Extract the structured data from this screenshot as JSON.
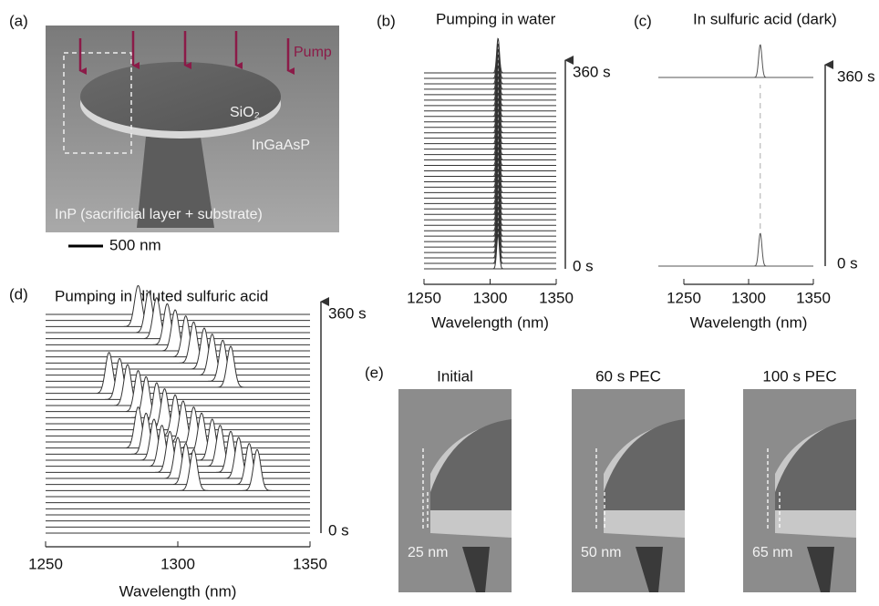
{
  "panels": {
    "a": {
      "label": "(a)",
      "pump": "Pump",
      "sio2": "SiO₂",
      "ingaasp": "InGaAsP",
      "inp": "InP (sacrificial layer + substrate)",
      "scale_bar": "500 nm"
    },
    "e": {
      "label": "(e)",
      "images": [
        {
          "title": "Initial",
          "thickness": "25 nm"
        },
        {
          "title": "60 s PEC",
          "thickness": "50 nm"
        },
        {
          "title": "100 s PEC",
          "thickness": "65 nm"
        }
      ]
    }
  },
  "chart_data": [
    {
      "type": "waterfall",
      "label": "(b)",
      "title": "Pumping in water",
      "x_label": "Wavelength (nm)",
      "xlim": [
        1250,
        1350
      ],
      "xticks": [
        1250,
        1300,
        1350
      ],
      "ylim": [
        0,
        360
      ],
      "yticks": [
        {
          "value": 0,
          "label": "0 s"
        },
        {
          "value": 360,
          "label": "360 s"
        }
      ],
      "x": [
        0,
        10,
        20,
        30,
        40,
        50,
        60,
        70,
        80,
        90,
        100,
        110,
        120,
        130,
        140,
        150,
        160,
        170,
        180,
        190,
        200,
        210,
        220,
        230,
        240,
        250,
        260,
        270,
        280,
        290,
        300,
        310,
        320,
        330,
        340,
        350,
        360
      ],
      "series": [
        {
          "color": "#333333",
          "values": [
            1306,
            1306,
            1306,
            1306,
            1306,
            1306,
            1306,
            1306,
            1306,
            1306,
            1306,
            1306,
            1306,
            1306,
            1306,
            1306,
            1306,
            1306,
            1306,
            1306,
            1306,
            1306,
            1306,
            1306,
            1306,
            1306,
            1306,
            1306,
            1306,
            1306,
            1306,
            1306,
            1306,
            1306,
            1306,
            1306,
            1306
          ]
        }
      ]
    },
    {
      "type": "waterfall",
      "label": "(c)",
      "title": "In sulfuric acid (dark)",
      "x_label": "Wavelength (nm)",
      "xlim": [
        1250,
        1350
      ],
      "xticks": [
        1250,
        1300,
        1350
      ],
      "ylim": [
        0,
        360
      ],
      "yticks": [
        {
          "value": 0,
          "label": "0 s"
        },
        {
          "value": 360,
          "label": "360 s"
        }
      ],
      "x": [
        0,
        360
      ],
      "series": [
        {
          "color": "#555555",
          "values": [
            1309,
            1309
          ]
        }
      ]
    },
    {
      "type": "waterfall",
      "label": "(d)",
      "title": "Pumping in diluted sulfuric acid",
      "x_label": "Wavelength (nm)",
      "xlim": [
        1250,
        1350
      ],
      "xticks": [
        1250,
        1300,
        1350
      ],
      "ylim": [
        0,
        360
      ],
      "yticks": [
        {
          "value": 0,
          "label": "0 s"
        },
        {
          "value": 360,
          "label": "360 s"
        }
      ],
      "x": [
        0,
        10,
        20,
        30,
        40,
        50,
        60,
        70,
        80,
        90,
        100,
        110,
        120,
        130,
        140,
        150,
        160,
        170,
        180,
        190,
        200,
        210,
        220,
        230,
        240,
        250,
        260,
        270,
        280,
        290,
        300,
        310,
        320,
        330,
        340,
        350,
        360
      ],
      "series": [
        {
          "color": "#333333",
          "values": [
            null,
            null,
            null,
            null,
            null,
            null,
            null,
            1306,
            1303,
            1300,
            1297,
            1294,
            1291,
            1288,
            1285,
            null,
            null,
            null,
            null,
            null,
            null,
            null,
            null,
            null,
            null,
            null,
            null,
            null,
            null,
            null,
            null,
            null,
            null,
            null,
            null,
            null,
            null
          ]
        },
        {
          "color": "#333333",
          "values": [
            null,
            null,
            null,
            null,
            null,
            null,
            null,
            1330,
            1327,
            1323,
            1320,
            1316,
            1313,
            1309,
            1306,
            1302,
            1299,
            1295,
            1292,
            1288,
            1285,
            1281,
            1278,
            1274,
            null,
            null,
            null,
            null,
            null,
            null,
            null,
            null,
            null,
            null,
            null,
            null,
            null
          ]
        },
        {
          "color": "#333333",
          "values": [
            null,
            null,
            null,
            null,
            null,
            null,
            null,
            null,
            null,
            null,
            null,
            null,
            null,
            null,
            null,
            null,
            null,
            null,
            null,
            null,
            null,
            null,
            null,
            null,
            1320,
            1317,
            1313,
            1310,
            1306,
            1303,
            1299,
            1296,
            1292,
            1289,
            1285,
            null,
            null
          ]
        }
      ]
    }
  ]
}
